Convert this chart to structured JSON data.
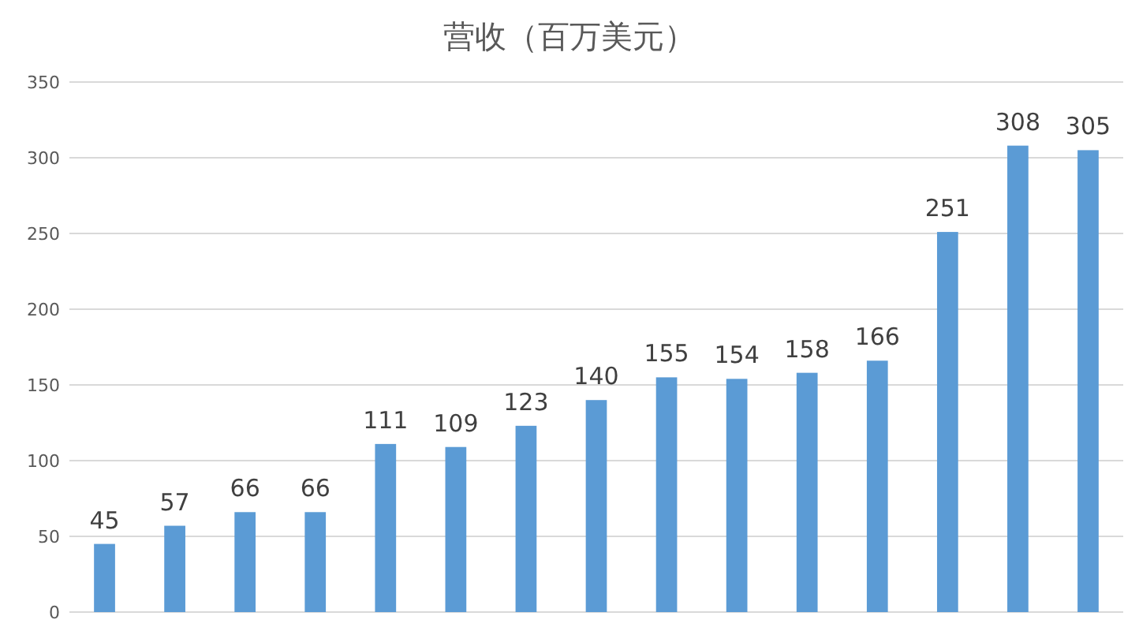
{
  "chart_data": {
    "type": "bar",
    "title": "营收（百万美元）",
    "categories": [
      null,
      null,
      null,
      null,
      null,
      null,
      null,
      null,
      null,
      null,
      null,
      null,
      null,
      null,
      null
    ],
    "values": [
      45,
      57,
      66,
      66,
      111,
      109,
      123,
      140,
      155,
      154,
      158,
      166,
      251,
      308,
      305
    ],
    "color": "#5b9bd5",
    "ylim": [
      0,
      350
    ],
    "yticks": [
      0,
      50,
      100,
      150,
      200,
      250,
      300,
      350
    ],
    "grid": "y",
    "data_labels": true
  }
}
